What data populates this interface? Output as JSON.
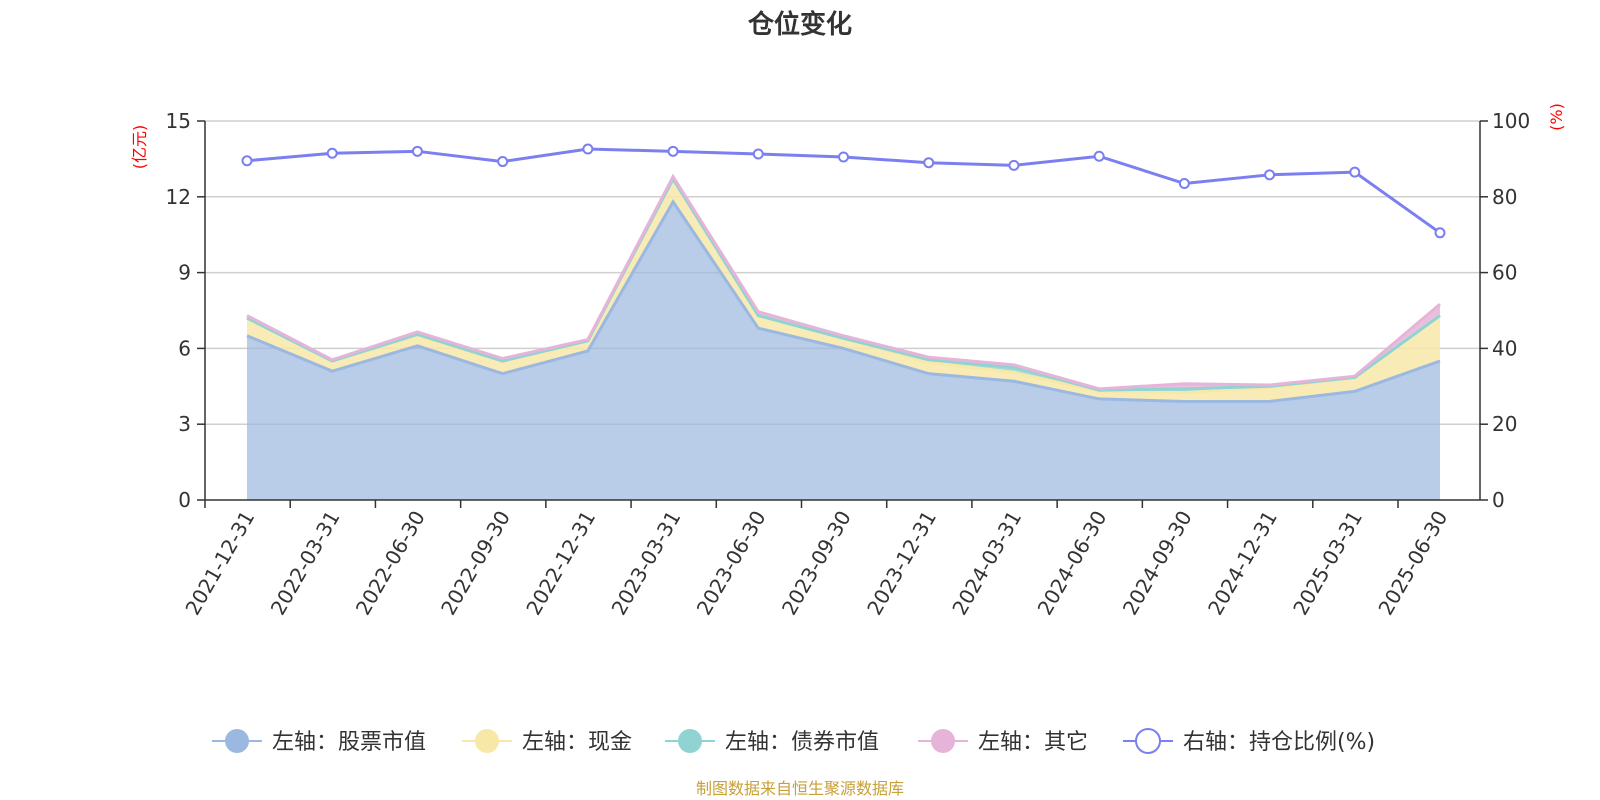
{
  "chart_data": {
    "type": "area",
    "title": "仓位变化",
    "left_axis_unit": "(亿元)",
    "right_axis_unit": "(%)",
    "categories": [
      "2021-12-31",
      "2022-03-31",
      "2022-06-30",
      "2022-09-30",
      "2022-12-31",
      "2023-03-31",
      "2023-06-30",
      "2023-09-30",
      "2023-12-31",
      "2024-03-31",
      "2024-06-30",
      "2024-09-30",
      "2024-12-31",
      "2025-03-31",
      "2025-06-30"
    ],
    "left_axis": {
      "min": 0,
      "max": 15,
      "ticks": [
        0,
        3,
        6,
        9,
        12,
        15
      ]
    },
    "right_axis": {
      "min": 0,
      "max": 100,
      "ticks": [
        0,
        20,
        40,
        60,
        80,
        100
      ]
    },
    "series": [
      {
        "name": "左轴：股票市值",
        "axis": "left",
        "stacked": true,
        "color": "#9bb8e0",
        "values": [
          6.5,
          5.1,
          6.1,
          5.0,
          5.9,
          11.8,
          6.8,
          6.0,
          5.0,
          4.7,
          4.0,
          3.9,
          3.9,
          4.3,
          5.5
        ]
      },
      {
        "name": "左轴：现金",
        "axis": "left",
        "stacked": true,
        "color": "#f8e8a8",
        "values": [
          0.7,
          0.4,
          0.4,
          0.5,
          0.4,
          0.9,
          0.5,
          0.4,
          0.45,
          0.35,
          0.3,
          0.35,
          0.55,
          0.55,
          1.8
        ]
      },
      {
        "name": "左轴：债券市值",
        "axis": "left",
        "stacked": true,
        "color": "#8fd3d3",
        "values": [
          0.0,
          0.0,
          0.05,
          0.0,
          0.0,
          0.0,
          0.0,
          0.0,
          0.1,
          0.2,
          0.05,
          0.15,
          0.05,
          0.0,
          0.0
        ]
      },
      {
        "name": "左轴：其它",
        "axis": "left",
        "stacked": true,
        "color": "#e6b4d8",
        "values": [
          0.1,
          0.05,
          0.1,
          0.1,
          0.05,
          0.1,
          0.15,
          0.1,
          0.1,
          0.1,
          0.05,
          0.2,
          0.05,
          0.05,
          0.45
        ]
      },
      {
        "name": "右轴：持仓比例(%)",
        "axis": "right",
        "stacked": false,
        "color": "#7b7ff0",
        "values": [
          89.5,
          91.5,
          92.0,
          89.3,
          92.6,
          92.0,
          91.3,
          90.5,
          89.0,
          88.3,
          90.7,
          83.5,
          85.8,
          86.5,
          70.5
        ]
      }
    ],
    "grid": true,
    "legend_position": "bottom"
  },
  "source_note": "制图数据来自恒生聚源数据库"
}
